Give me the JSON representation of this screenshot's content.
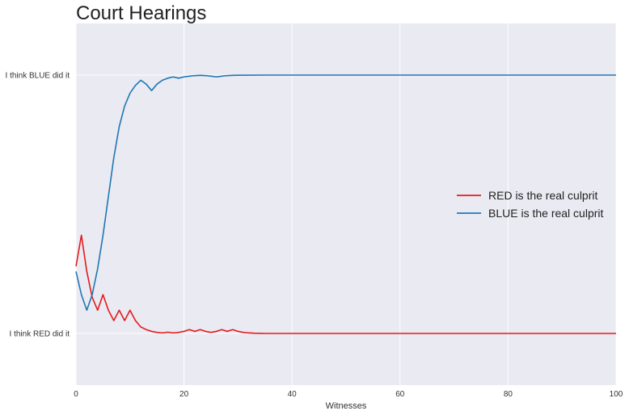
{
  "chart_data": {
    "type": "line",
    "title": "Court Hearings",
    "xlabel": "Witnesses",
    "ylabel": "",
    "xlim": [
      0,
      100
    ],
    "ylim": [
      -0.2,
      1.2
    ],
    "xticks": [
      0,
      20,
      40,
      60,
      80,
      100
    ],
    "yticks": [
      {
        "value": 0,
        "label": "I think RED did it"
      },
      {
        "value": 1,
        "label": "I think BLUE did it"
      }
    ],
    "grid": true,
    "legend_position": "center-right",
    "series": [
      {
        "name": "RED is the real culprit",
        "color": "#e41a1c",
        "points": [
          [
            0,
            0.26
          ],
          [
            1,
            0.38
          ],
          [
            2,
            0.24
          ],
          [
            3,
            0.14
          ],
          [
            4,
            0.09
          ],
          [
            5,
            0.15
          ],
          [
            6,
            0.09
          ],
          [
            7,
            0.05
          ],
          [
            8,
            0.09
          ],
          [
            9,
            0.05
          ],
          [
            10,
            0.09
          ],
          [
            11,
            0.05
          ],
          [
            12,
            0.025
          ],
          [
            13,
            0.015
          ],
          [
            14,
            0.008
          ],
          [
            15,
            0.004
          ],
          [
            16,
            0.002
          ],
          [
            17,
            0.005
          ],
          [
            18,
            0.002
          ],
          [
            19,
            0.004
          ],
          [
            20,
            0.008
          ],
          [
            21,
            0.015
          ],
          [
            22,
            0.008
          ],
          [
            23,
            0.015
          ],
          [
            24,
            0.008
          ],
          [
            25,
            0.004
          ],
          [
            26,
            0.008
          ],
          [
            27,
            0.015
          ],
          [
            28,
            0.008
          ],
          [
            29,
            0.015
          ],
          [
            30,
            0.008
          ],
          [
            31,
            0.004
          ],
          [
            32,
            0.002
          ],
          [
            33,
            0.001
          ],
          [
            34,
            0.0005
          ],
          [
            35,
            0.0
          ],
          [
            40,
            0.0
          ],
          [
            50,
            0.0
          ],
          [
            60,
            0.0
          ],
          [
            70,
            0.0
          ],
          [
            80,
            0.0
          ],
          [
            90,
            0.0
          ],
          [
            100,
            0.0
          ]
        ]
      },
      {
        "name": "BLUE is the real culprit",
        "color": "#1f77b4",
        "points": [
          [
            0,
            0.24
          ],
          [
            1,
            0.15
          ],
          [
            2,
            0.09
          ],
          [
            3,
            0.15
          ],
          [
            4,
            0.25
          ],
          [
            5,
            0.38
          ],
          [
            6,
            0.53
          ],
          [
            7,
            0.68
          ],
          [
            8,
            0.8
          ],
          [
            9,
            0.88
          ],
          [
            10,
            0.93
          ],
          [
            11,
            0.96
          ],
          [
            12,
            0.98
          ],
          [
            13,
            0.965
          ],
          [
            14,
            0.94
          ],
          [
            15,
            0.965
          ],
          [
            16,
            0.98
          ],
          [
            17,
            0.988
          ],
          [
            18,
            0.993
          ],
          [
            19,
            0.988
          ],
          [
            20,
            0.993
          ],
          [
            21,
            0.996
          ],
          [
            22,
            0.998
          ],
          [
            23,
            0.999
          ],
          [
            24,
            0.998
          ],
          [
            25,
            0.996
          ],
          [
            26,
            0.993
          ],
          [
            27,
            0.996
          ],
          [
            28,
            0.998
          ],
          [
            29,
            0.999
          ],
          [
            30,
            0.9995
          ],
          [
            35,
            1.0
          ],
          [
            40,
            1.0
          ],
          [
            50,
            1.0
          ],
          [
            60,
            1.0
          ],
          [
            70,
            1.0
          ],
          [
            80,
            1.0
          ],
          [
            90,
            1.0
          ],
          [
            100,
            1.0
          ]
        ]
      }
    ]
  }
}
